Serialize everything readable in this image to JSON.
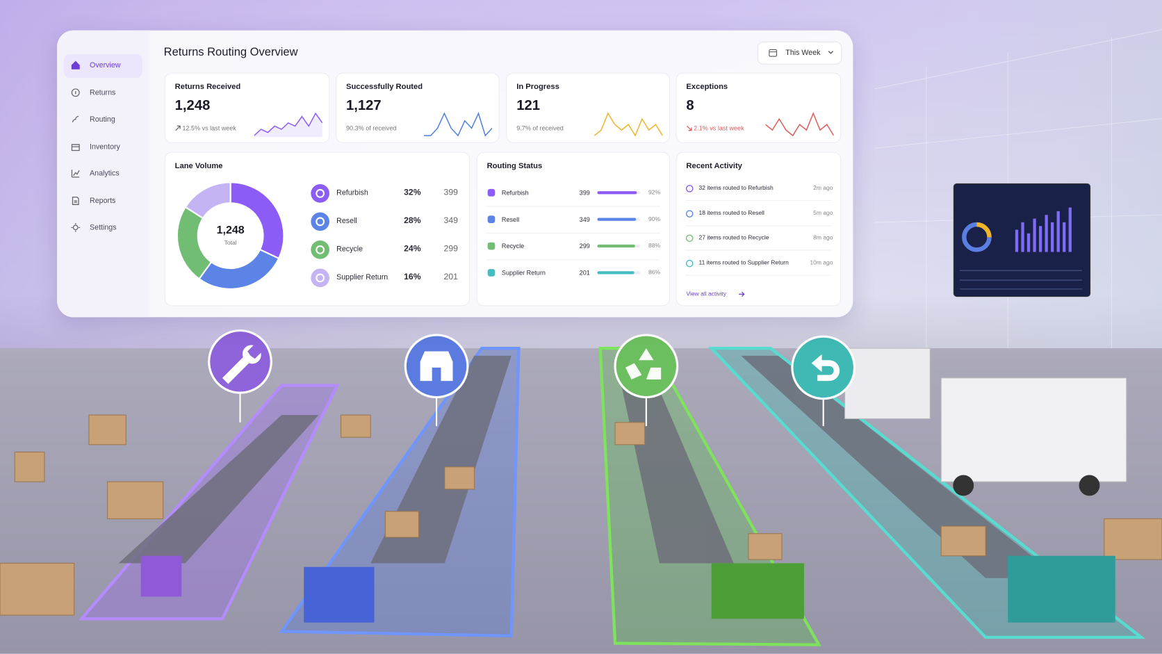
{
  "sidebar": {
    "items": [
      "Overview",
      "Returns",
      "Routing",
      "Inventory",
      "Analytics",
      "Reports",
      "Settings"
    ]
  },
  "header": {
    "title": "Returns Routing Overview",
    "period": "This Week"
  },
  "kpis": [
    {
      "label": "Returns Received",
      "value": "1,248",
      "note": "12.5% vs last week",
      "color": "#8b5cf6",
      "trend": [
        3,
        5,
        4,
        6,
        5,
        7,
        6,
        9,
        6,
        10,
        7
      ]
    },
    {
      "label": "Successfully Routed",
      "value": "1,127",
      "note": "90.3% of received",
      "color": "#4f7fe0",
      "trend": [
        4,
        4,
        5,
        7,
        5,
        4,
        6,
        5,
        7,
        4,
        5
      ]
    },
    {
      "label": "In Progress",
      "value": "121",
      "note": "9.7% of received",
      "color": "#f0b429",
      "trend": [
        4,
        5,
        8,
        6,
        5,
        6,
        4,
        7,
        5,
        6,
        4
      ]
    },
    {
      "label": "Exceptions",
      "value": "8",
      "note": "2.1% vs last week",
      "color": "#e05a5a",
      "trend": [
        6,
        5,
        7,
        5,
        4,
        6,
        5,
        8,
        5,
        6,
        4
      ]
    }
  ],
  "lane_volume": {
    "title": "Lane Volume",
    "total": "1,248",
    "total_label": "Total",
    "lanes": [
      {
        "name": "Refurbish",
        "share": 32,
        "share_label": "32%",
        "count": 399,
        "color": "#8b5cf6"
      },
      {
        "name": "Resell",
        "share": 28,
        "share_label": "28%",
        "count": 349,
        "color": "#5b84e6"
      },
      {
        "name": "Recycle",
        "share": 24,
        "share_label": "24%",
        "count": 299,
        "color": "#72bd74"
      },
      {
        "name": "Supplier Return",
        "share": 16,
        "share_label": "16%",
        "count": 201,
        "color": "#c5b4f3"
      }
    ]
  },
  "routing_status": {
    "title": "Routing Status",
    "rows": [
      {
        "name": "Refurbish",
        "count": 399,
        "percent": 92,
        "percent_label": "92%",
        "color": "#8b5cf6"
      },
      {
        "name": "Resell",
        "count": 349,
        "percent": 90,
        "percent_label": "90%",
        "color": "#5b84e6"
      },
      {
        "name": "Recycle",
        "count": 299,
        "percent": 88,
        "percent_label": "88%",
        "color": "#72bd74"
      },
      {
        "name": "Supplier Return",
        "count": 201,
        "percent": 86,
        "percent_label": "86%",
        "color": "#45bcc0"
      }
    ]
  },
  "recent_activity": {
    "title": "Recent Activity",
    "items": [
      {
        "text": "32 items routed to Refurbish",
        "time": "2m ago",
        "color": "#8b5cf6"
      },
      {
        "text": "18 items routed to Resell",
        "time": "5m ago",
        "color": "#5b84e6"
      },
      {
        "text": "27 items routed to Recycle",
        "time": "8m ago",
        "color": "#72bd74"
      },
      {
        "text": "11 items routed to Supplier Return",
        "time": "10m ago",
        "color": "#45bcc0"
      }
    ],
    "link": "View all activity"
  }
}
